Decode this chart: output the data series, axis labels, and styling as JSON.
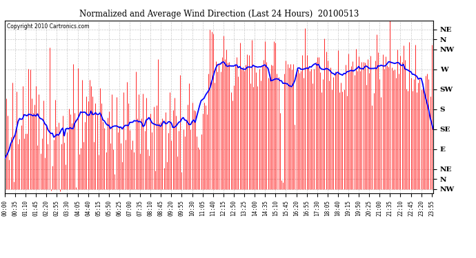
{
  "title": "Normalized and Average Wind Direction (Last 24 Hours)  20100513",
  "copyright": "Copyright 2010 Cartronics.com",
  "background_color": "#ffffff",
  "plot_bg_color": "#ffffff",
  "grid_color": "#bbbbbb",
  "ytick_labels": [
    "NE",
    "N",
    "NW",
    "W",
    "SW",
    "S",
    "SE",
    "E",
    "NE",
    "N",
    "NW"
  ],
  "ytick_values": [
    360,
    337.5,
    315,
    270,
    225,
    180,
    135,
    90,
    45,
    22.5,
    0
  ],
  "ylim": [
    -10,
    380
  ],
  "red_line_color": "#ff0000",
  "blue_line_color": "#0000ff",
  "num_points": 289,
  "x_tick_step": 7,
  "figwidth": 6.9,
  "figheight": 3.75,
  "dpi": 100
}
